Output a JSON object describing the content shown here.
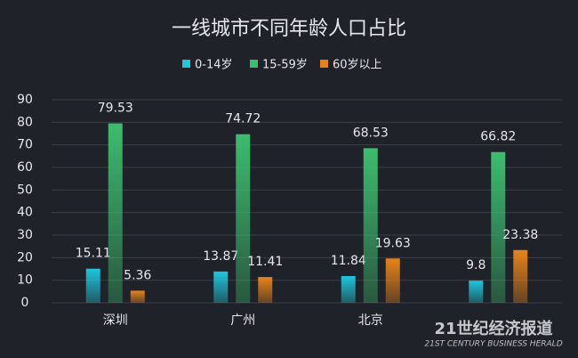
{
  "chart_data": {
    "type": "bar",
    "title": "一线城市不同年龄人口占比",
    "categories": [
      "深圳",
      "广州",
      "北京",
      null
    ],
    "series": [
      {
        "name": "0-14岁",
        "color": "#1fc6dc",
        "values": [
          15.11,
          13.87,
          11.84,
          9.8
        ]
      },
      {
        "name": "15-59岁",
        "color": "#3cbd6e",
        "values": [
          79.53,
          74.72,
          68.53,
          66.82
        ]
      },
      {
        "name": "60岁以上",
        "color": "#e8831a",
        "values": [
          5.36,
          11.41,
          19.63,
          23.38
        ]
      }
    ],
    "ylim": [
      0,
      90
    ],
    "yticks": [
      0,
      10,
      20,
      30,
      40,
      50,
      60,
      70,
      80,
      90
    ],
    "grid": true,
    "legend": "top"
  },
  "watermark": {
    "text": "21世纪经济报道",
    "subtext": "21ST CENTURY BUSINESS HERALD"
  }
}
